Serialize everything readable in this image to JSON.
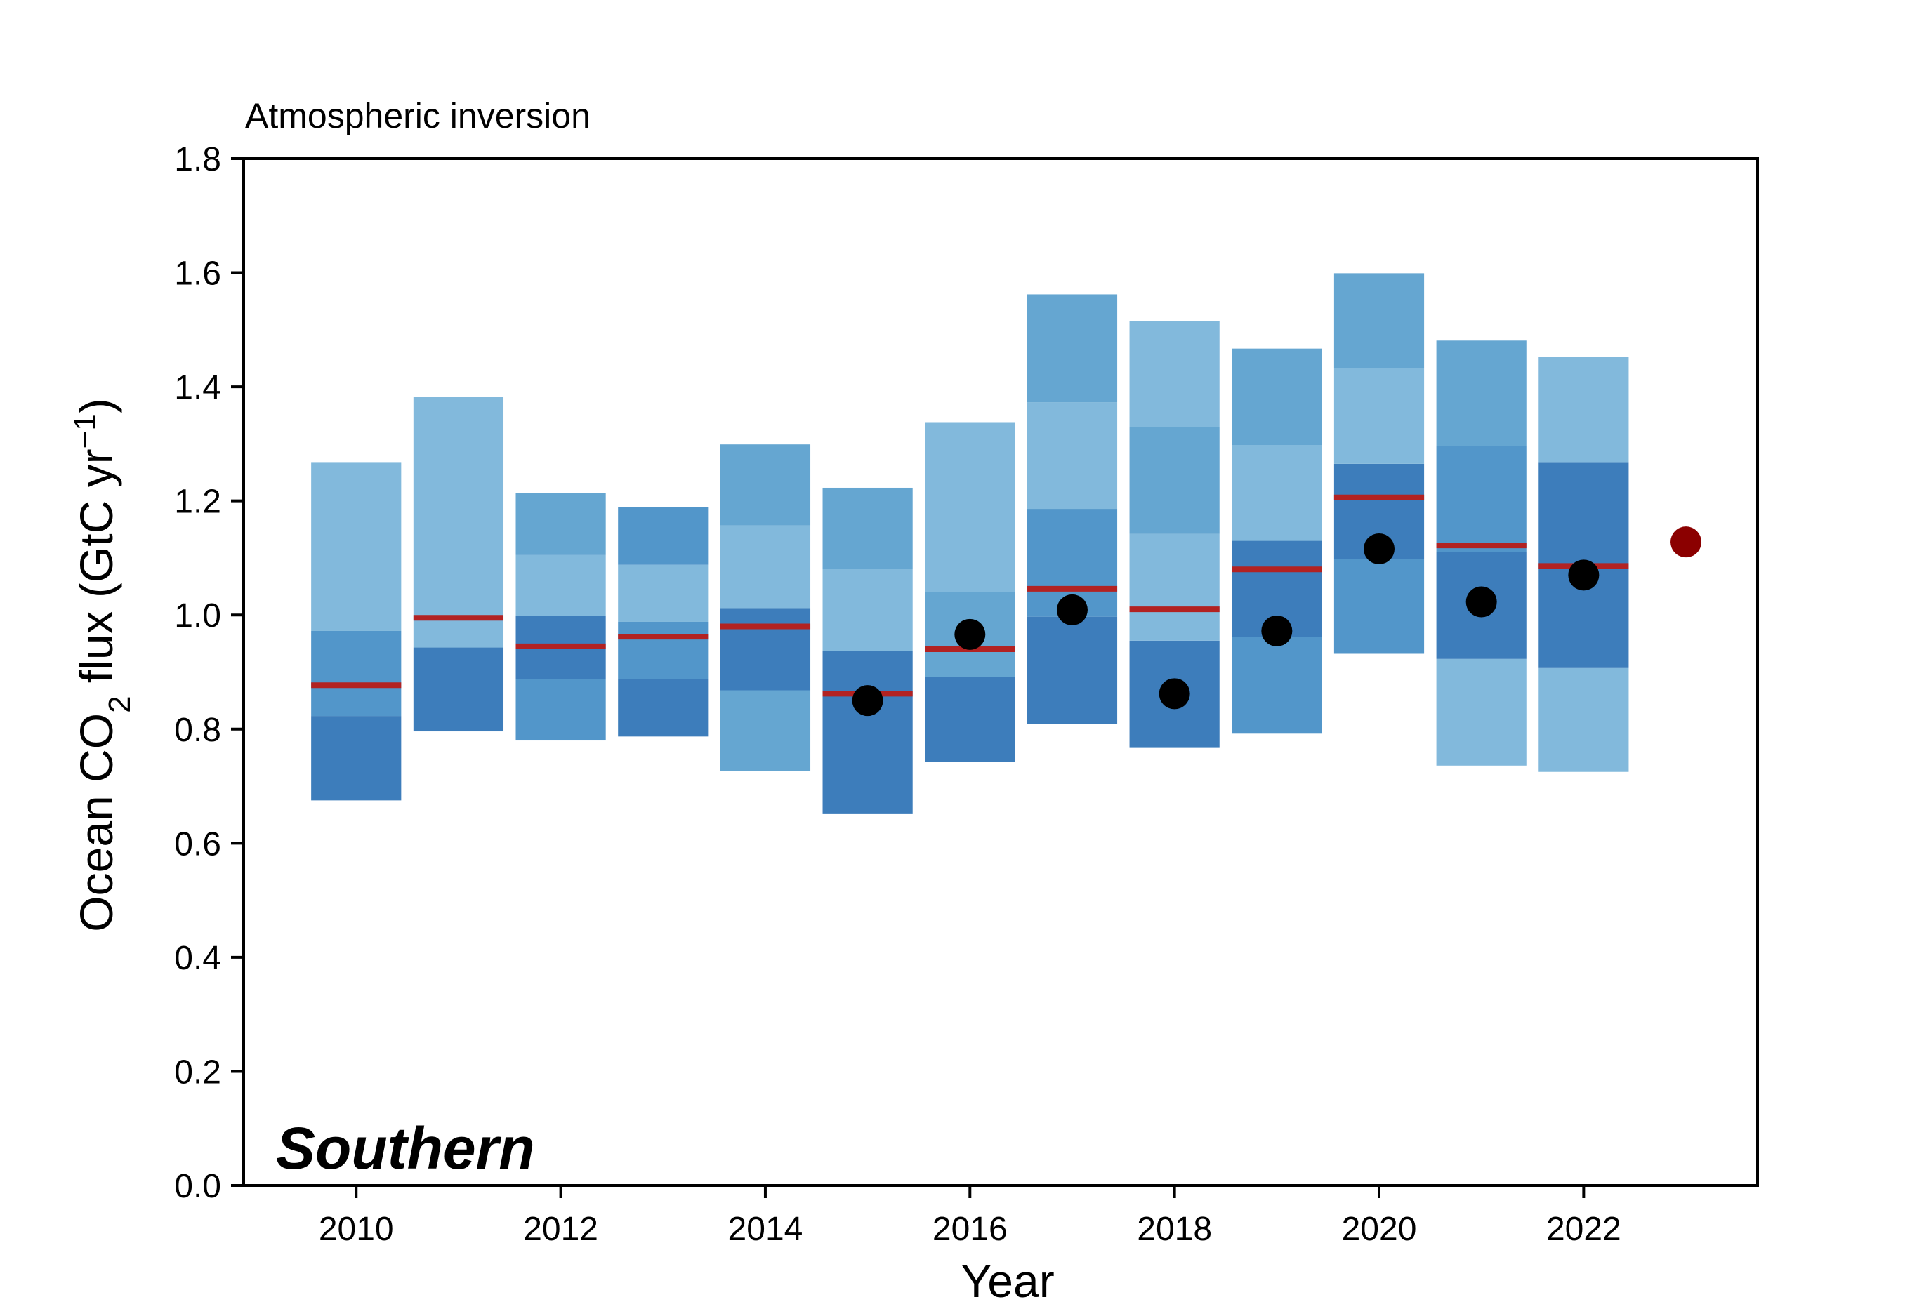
{
  "chart_data": {
    "type": "bar",
    "title": "Atmospheric inversion",
    "region_label": "Southern",
    "xlabel": "Year",
    "ylabel_parts": [
      "Ocean CO",
      "2",
      " flux (GtC yr",
      "−1",
      ")"
    ],
    "xlim": [
      2008.9,
      2023.7
    ],
    "ylim": [
      0,
      1.8
    ],
    "x_ticks": [
      2010,
      2012,
      2014,
      2016,
      2018,
      2020,
      2022
    ],
    "y_ticks": [
      "0.0",
      "0.2",
      "0.4",
      "0.6",
      "0.8",
      "1.0",
      "1.2",
      "1.4",
      "1.6",
      "1.8"
    ],
    "colors": {
      "band_dark": "#3d7dbb",
      "band_mid": "#5296ca",
      "band_light": "#65a6d1",
      "band_pale": "#82b9dc",
      "median_line": "#b22222",
      "point": "#000000",
      "projection_point": "#8b0000",
      "region_label": "#b22222"
    },
    "bars": [
      {
        "year": 2010,
        "median": 0.877,
        "point": null,
        "segments": [
          [
            0.675,
            0.823,
            "band_dark"
          ],
          [
            0.823,
            0.972,
            "band_mid"
          ],
          [
            0.972,
            1.268,
            "band_pale"
          ]
        ]
      },
      {
        "year": 2011,
        "median": 0.995,
        "point": null,
        "segments": [
          [
            0.796,
            0.943,
            "band_dark"
          ],
          [
            0.943,
            1.382,
            "band_pale"
          ]
        ]
      },
      {
        "year": 2012,
        "median": 0.945,
        "point": null,
        "segments": [
          [
            0.78,
            0.888,
            "band_mid"
          ],
          [
            0.888,
            0.998,
            "band_dark"
          ],
          [
            0.998,
            1.105,
            "band_pale"
          ],
          [
            1.105,
            1.214,
            "band_light"
          ]
        ]
      },
      {
        "year": 2013,
        "median": 0.962,
        "point": null,
        "segments": [
          [
            0.787,
            0.888,
            "band_dark"
          ],
          [
            0.888,
            0.988,
            "band_mid"
          ],
          [
            0.988,
            1.088,
            "band_pale"
          ],
          [
            1.088,
            1.189,
            "band_mid"
          ]
        ]
      },
      {
        "year": 2014,
        "median": 0.98,
        "point": null,
        "segments": [
          [
            0.726,
            0.868,
            "band_light"
          ],
          [
            0.868,
            1.012,
            "band_dark"
          ],
          [
            1.012,
            1.157,
            "band_pale"
          ],
          [
            1.157,
            1.299,
            "band_light"
          ]
        ]
      },
      {
        "year": 2015,
        "median": 0.862,
        "point": 0.85,
        "segments": [
          [
            0.651,
            0.937,
            "band_dark"
          ],
          [
            0.937,
            1.081,
            "band_pale"
          ],
          [
            1.081,
            1.223,
            "band_light"
          ]
        ]
      },
      {
        "year": 2016,
        "median": 0.94,
        "point": 0.966,
        "segments": [
          [
            0.742,
            0.891,
            "band_dark"
          ],
          [
            0.891,
            1.04,
            "band_light"
          ],
          [
            1.04,
            1.338,
            "band_pale"
          ]
        ]
      },
      {
        "year": 2017,
        "median": 1.046,
        "point": 1.009,
        "segments": [
          [
            0.809,
            0.997,
            "band_dark"
          ],
          [
            0.997,
            1.186,
            "band_mid"
          ],
          [
            1.186,
            1.373,
            "band_pale"
          ],
          [
            1.373,
            1.562,
            "band_light"
          ]
        ]
      },
      {
        "year": 2018,
        "median": 1.01,
        "point": 0.862,
        "segments": [
          [
            0.767,
            0.955,
            "band_dark"
          ],
          [
            0.955,
            1.142,
            "band_pale"
          ],
          [
            1.142,
            1.329,
            "band_light"
          ],
          [
            1.329,
            1.515,
            "band_pale"
          ]
        ]
      },
      {
        "year": 2019,
        "median": 1.08,
        "point": 0.972,
        "segments": [
          [
            0.792,
            0.961,
            "band_mid"
          ],
          [
            0.961,
            1.13,
            "band_dark"
          ],
          [
            1.13,
            1.298,
            "band_pale"
          ],
          [
            1.298,
            1.467,
            "band_light"
          ]
        ]
      },
      {
        "year": 2020,
        "median": 1.206,
        "point": 1.116,
        "segments": [
          [
            0.932,
            1.098,
            "band_mid"
          ],
          [
            1.098,
            1.265,
            "band_dark"
          ],
          [
            1.265,
            1.433,
            "band_pale"
          ],
          [
            1.433,
            1.599,
            "band_light"
          ]
        ]
      },
      {
        "year": 2021,
        "median": 1.122,
        "point": 1.023,
        "segments": [
          [
            0.736,
            0.923,
            "band_pale"
          ],
          [
            0.923,
            1.11,
            "band_dark"
          ],
          [
            1.11,
            1.296,
            "band_mid"
          ],
          [
            1.296,
            1.481,
            "band_light"
          ]
        ]
      },
      {
        "year": 2022,
        "median": 1.086,
        "point": 1.07,
        "segments": [
          [
            0.725,
            0.907,
            "band_pale"
          ],
          [
            0.907,
            1.268,
            "band_dark"
          ],
          [
            1.268,
            1.452,
            "band_pale"
          ]
        ]
      }
    ],
    "projection": {
      "year": 2023,
      "value": 1.128
    }
  }
}
